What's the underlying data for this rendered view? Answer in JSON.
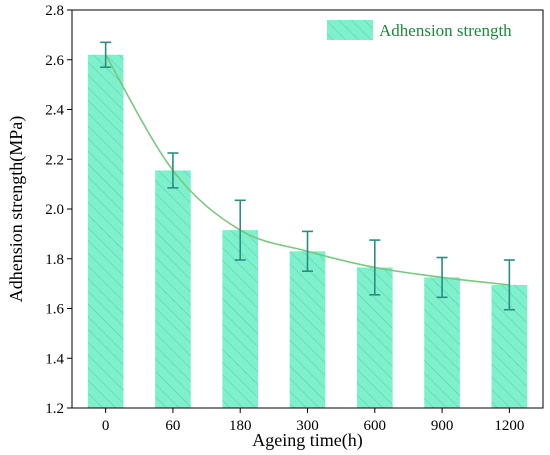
{
  "chart_data": {
    "type": "bar",
    "title": "",
    "xlabel": "Ageing time(h)",
    "ylabel": "Adhension strength(MPa)",
    "categories": [
      "0",
      "60",
      "180",
      "300",
      "600",
      "900",
      "1200"
    ],
    "ylim": [
      1.2,
      2.8
    ],
    "yticks": [
      "1.2",
      "1.4",
      "1.6",
      "1.8",
      "2.0",
      "2.2",
      "2.4",
      "2.6",
      "2.8"
    ],
    "grid": false,
    "legend_position": "top-right",
    "series": [
      {
        "name": "Adhension strength",
        "values": [
          2.62,
          2.155,
          1.915,
          1.83,
          1.765,
          1.725,
          1.695
        ],
        "error": [
          0.05,
          0.07,
          0.12,
          0.08,
          0.11,
          0.08,
          0.1
        ],
        "fit_curve": true
      }
    ],
    "colors": {
      "bar_fill": "#7ff0cc",
      "bar_hatch": "#55cda6",
      "error_bar": "#2b8c86",
      "fit_line": "#7ac77e",
      "legend_text": "#1a8a3a"
    }
  }
}
